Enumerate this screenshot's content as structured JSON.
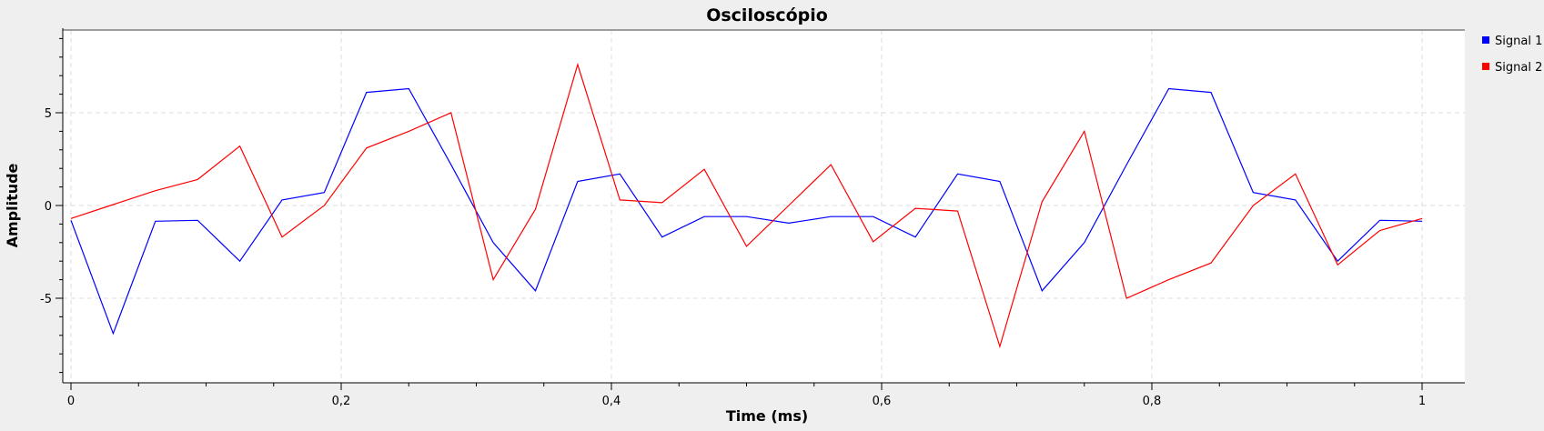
{
  "chart_data": {
    "type": "line",
    "title": "Osciloscópio",
    "xlabel": "Time (ms)",
    "ylabel": "Amplitude",
    "xlim": [
      -0.005,
      1.03
    ],
    "ylim": [
      -9.3,
      9.3
    ],
    "x_ticks": [
      0,
      0.2,
      0.4,
      0.6,
      0.8,
      1
    ],
    "x_tick_labels": [
      "0",
      "0,2",
      "0,4",
      "0,6",
      "0,8",
      "1"
    ],
    "y_ticks": [
      -5,
      0,
      5
    ],
    "y_tick_labels": [
      "-5",
      "0",
      "5"
    ],
    "grid": true,
    "legend_position": "right",
    "x": [
      0,
      0.03125,
      0.0625,
      0.09375,
      0.125,
      0.15625,
      0.1875,
      0.21875,
      0.25,
      0.28125,
      0.3125,
      0.34375,
      0.375,
      0.40625,
      0.4375,
      0.46875,
      0.5,
      0.53125,
      0.5625,
      0.59375,
      0.625,
      0.65625,
      0.6875,
      0.71875,
      0.75,
      0.78125,
      0.8125,
      0.84375,
      0.875,
      0.90625,
      0.9375,
      0.96875,
      1.0
    ],
    "series": [
      {
        "name": "Signal 1",
        "color": "#0000ff",
        "values": [
          -0.8,
          -6.9,
          -0.85,
          -0.8,
          -3.0,
          0.3,
          0.7,
          6.1,
          6.3,
          2.2,
          -2.0,
          -4.6,
          1.3,
          1.7,
          -1.7,
          -0.6,
          -0.6,
          -0.95,
          -0.6,
          -0.6,
          -1.7,
          1.7,
          1.3,
          -4.6,
          -2.0,
          2.2,
          6.3,
          6.1,
          0.7,
          0.3,
          -3.0,
          -0.8,
          -0.85
        ]
      },
      {
        "name": "Signal 2",
        "color": "#ff0000",
        "values": [
          -0.7,
          0.05,
          0.8,
          1.4,
          3.2,
          -1.7,
          0.0,
          3.1,
          4.0,
          5.0,
          -4.0,
          -0.2,
          7.6,
          0.3,
          0.15,
          1.95,
          -2.2,
          0.0,
          2.2,
          -1.95,
          -0.15,
          -0.3,
          -7.6,
          0.2,
          4.0,
          -5.0,
          -4.0,
          -3.1,
          0.0,
          1.7,
          -3.2,
          -1.35,
          -0.7
        ]
      }
    ]
  }
}
